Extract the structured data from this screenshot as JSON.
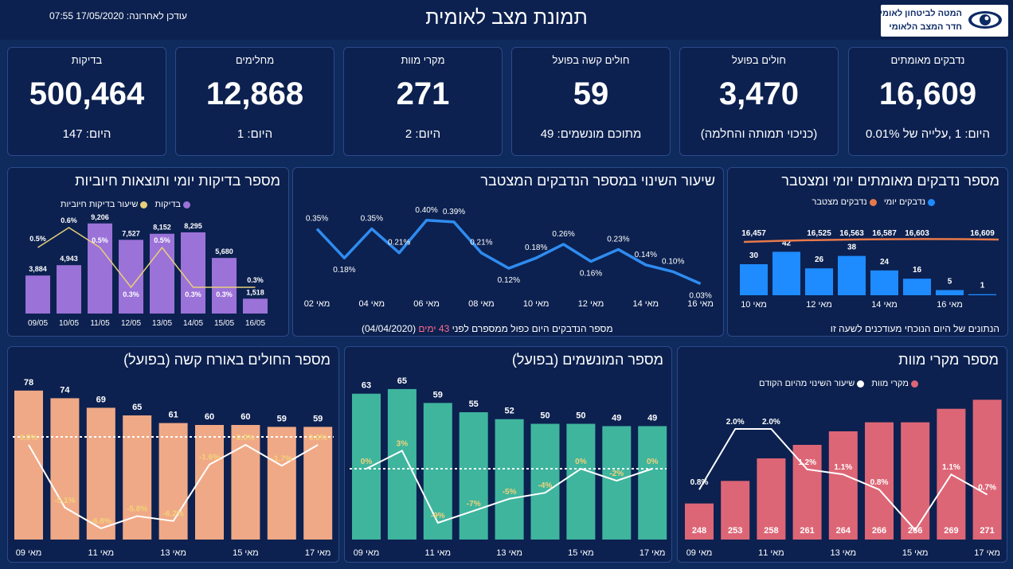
{
  "header": {
    "title": "תמונת מצב לאומית",
    "updated": "עודכן לאחרונה: 17/05/2020 07:55",
    "logo_line1": "המטה לביטחון לאומי",
    "logo_line2": "חדר המצב הלאומי"
  },
  "kpis": [
    {
      "title": "נדבקים מאומתים",
      "value": "16,609",
      "sub": "היום: 1 ,עלייה של 0.01%"
    },
    {
      "title": "חולים בפועל",
      "value": "3,470",
      "sub": "(כניכוי תמותה והחלמה)"
    },
    {
      "title": "חולים קשה בפועל",
      "value": "59",
      "sub": "מתוכם מונשמים: 49"
    },
    {
      "title": "מקרי מוות",
      "value": "271",
      "sub": "היום: 2"
    },
    {
      "title": "מחלימים",
      "value": "12,868",
      "sub": "היום: 1"
    },
    {
      "title": "בדיקות",
      "value": "500,464",
      "sub": "היום: 147"
    }
  ],
  "colors": {
    "background": "#0f2a5c",
    "panel": "#0c2150",
    "tests_bar": "#9b72d8",
    "positive_line": "#e8cf7a",
    "change_line": "#2f8cf0",
    "daily_cases": "#1e8bff",
    "cumulative": "#e8794a",
    "severe_bar": "#f0a986",
    "ventilated_bar": "#3fb59e",
    "deaths_bar": "#dd6676"
  },
  "panels": {
    "tests": {
      "title": "מספר בדיקות יומי ותוצאות חיוביות",
      "legend_tests": "בדיקות",
      "legend_positive": "שיעור בדיקות חיוביות"
    },
    "change": {
      "title": "שיעור השינוי במספר הנדבקים המצטבר",
      "note_prefix": "מספר הנדבקים היום כפול ממספרם לפני",
      "note_days": "43 ימים",
      "note_date": "(04/04/2020)"
    },
    "cases": {
      "title": "מספר נדבקים מאומתים יומי ומצטבר",
      "legend_daily": "נדבקים יומי",
      "legend_cumulative": "נדבקים מצטבר",
      "note": "הנתונים של היום הנוכחי מעודכנים לשעה זו"
    },
    "severe": {
      "title": "מספר החולים באורח קשה (בפועל)"
    },
    "ventilated": {
      "title": "מספר המונשמים (בפועל)"
    },
    "deaths": {
      "title": "מספר מקרי מוות",
      "legend_deaths": "מקרי מוות",
      "legend_change": "שיעור השינוי מהיום הקודם"
    }
  },
  "chart_data": [
    {
      "id": "tests",
      "type": "bar",
      "categories": [
        "09/05",
        "10/05",
        "11/05",
        "12/05",
        "13/05",
        "14/05",
        "15/05",
        "16/05"
      ],
      "series": [
        {
          "name": "בדיקות",
          "values": [
            3884,
            4943,
            9206,
            7527,
            8152,
            8295,
            5680,
            1518
          ]
        },
        {
          "name": "שיעור בדיקות חיוביות",
          "values": [
            0.5,
            0.6,
            0.5,
            0.3,
            0.5,
            0.3,
            0.3,
            0.3
          ]
        }
      ],
      "value_labels": [
        "3,884",
        "4,943",
        "9,206",
        "7,527",
        "8,152",
        "8,295",
        "5,680",
        "1,518"
      ],
      "rate_labels": [
        "0.5%",
        "0.6%",
        "0.5%",
        "0.3%",
        "0.5%",
        "0.3%",
        "0.3%",
        "0.3%"
      ],
      "ylim": [
        0,
        10000
      ]
    },
    {
      "id": "change",
      "type": "line",
      "x": [
        "02",
        "03",
        "04",
        "05",
        "06",
        "07",
        "08",
        "09",
        "10",
        "11",
        "12",
        "13",
        "14",
        "15",
        "16"
      ],
      "tick_labels": [
        "02 מאי",
        "04 מאי",
        "06 מאי",
        "08 מאי",
        "10 מאי",
        "12 מאי",
        "14 מאי",
        "16 מאי"
      ],
      "values": [
        0.35,
        0.18,
        0.35,
        0.21,
        0.4,
        0.39,
        0.21,
        0.12,
        0.18,
        0.26,
        0.16,
        0.23,
        0.14,
        0.1,
        0.03
      ],
      "value_labels": [
        "0.35%",
        "0.18%",
        "0.35%",
        "0.21%",
        "0.40%",
        "0.39%",
        "0.21%",
        "0.12%",
        "0.18%",
        "0.26%",
        "0.16%",
        "0.23%",
        "0.14%",
        "0.10%",
        "0.03%"
      ],
      "ylim": [
        0,
        0.45
      ]
    },
    {
      "id": "cases",
      "type": "bar",
      "x": [
        "10",
        "11",
        "12",
        "13",
        "14",
        "15",
        "16",
        "17"
      ],
      "tick_labels": [
        "10 מאי",
        "12 מאי",
        "14 מאי",
        "16 מאי"
      ],
      "series": [
        {
          "name": "נדבקים יומי",
          "values": [
            30,
            42,
            26,
            38,
            24,
            16,
            5,
            1
          ]
        },
        {
          "name": "נדבקים מצטבר",
          "values": [
            16457,
            null,
            16525,
            16563,
            16587,
            16603,
            null,
            16609
          ]
        }
      ],
      "cumulative_labels": [
        "16,457",
        "",
        "16,525",
        "16,563",
        "16,587",
        "16,603",
        "",
        "16,609"
      ],
      "ylim": [
        0,
        50
      ]
    },
    {
      "id": "severe",
      "type": "bar",
      "x": [
        "09",
        "10",
        "11",
        "12",
        "13",
        "14",
        "15",
        "16",
        "17"
      ],
      "tick_labels": [
        "09 מאי",
        "11 מאי",
        "13 מאי",
        "15 מאי",
        "17 מאי"
      ],
      "values": [
        78,
        74,
        69,
        65,
        61,
        60,
        60,
        59,
        59
      ],
      "change_labels": [
        "0.0%",
        "-5.1%",
        "-6.8%",
        "-5.8%",
        "-6.2%",
        "-1.6%",
        "0.0%",
        "-1.7%",
        "0.0%"
      ],
      "change_values": [
        0.0,
        -5.1,
        -6.8,
        -5.8,
        -6.2,
        -1.6,
        0.0,
        -1.7,
        0.0
      ],
      "ylim": [
        0,
        80
      ]
    },
    {
      "id": "ventilated",
      "type": "bar",
      "x": [
        "09",
        "10",
        "11",
        "12",
        "13",
        "14",
        "15",
        "16",
        "17"
      ],
      "tick_labels": [
        "09 מאי",
        "11 מאי",
        "13 מאי",
        "15 מאי",
        "17 מאי"
      ],
      "values": [
        63,
        65,
        59,
        55,
        52,
        50,
        50,
        49,
        49
      ],
      "change_labels": [
        "0%",
        "3%",
        "-9%",
        "-7%",
        "-5%",
        "-4%",
        "0%",
        "-2%",
        "0%"
      ],
      "change_values": [
        0,
        3,
        -9,
        -7,
        -5,
        -4,
        0,
        -2,
        0
      ],
      "ylim": [
        0,
        66
      ]
    },
    {
      "id": "deaths",
      "type": "bar",
      "x": [
        "09",
        "10",
        "11",
        "12",
        "13",
        "14",
        "15",
        "16",
        "17"
      ],
      "tick_labels": [
        "09 מאי",
        "11 מאי",
        "13 מאי",
        "15 מאי",
        "17 מאי"
      ],
      "values": [
        248,
        253,
        258,
        261,
        264,
        266,
        266,
        269,
        271
      ],
      "change_labels": [
        "0.8%",
        "2.0%",
        "2.0%",
        "1.2%",
        "1.1%",
        "0.8%",
        "",
        "1.1%",
        "0.7%"
      ],
      "change_values": [
        0.8,
        2.0,
        2.0,
        1.2,
        1.1,
        0.8,
        0.0,
        1.1,
        0.7
      ],
      "ylim": [
        240,
        273
      ]
    }
  ]
}
